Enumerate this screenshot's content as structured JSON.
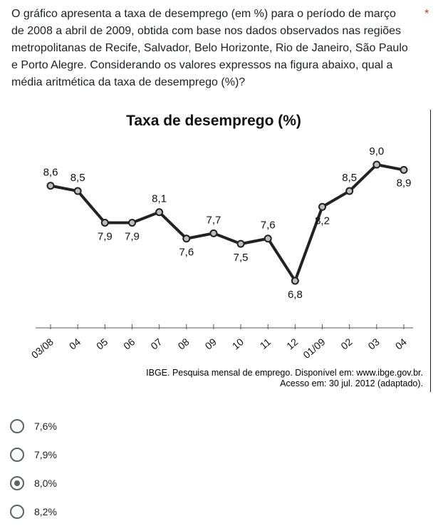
{
  "question": {
    "text": "O gráfico apresenta a taxa de desemprego (em %) para o período de março de 2008 a abril de 2009, obtida com base nos dados observados nas regiões metropolitanas de Recife, Salvador, Belo Horizonte, Rio de Janeiro, São Paulo e Porto Alegre. Considerando os valores expressos na figura abaixo, qual a média aritmética da taxa de desemprego (%)?",
    "required_marker": "*"
  },
  "chart_data": {
    "type": "line",
    "title": "Taxa de desemprego (%)",
    "xlabel": "",
    "ylabel": "",
    "categories": [
      "03/08",
      "04",
      "05",
      "06",
      "07",
      "08",
      "09",
      "10",
      "11",
      "12",
      "01/09",
      "02",
      "03",
      "04"
    ],
    "values": [
      8.6,
      8.5,
      7.9,
      7.9,
      8.1,
      7.6,
      7.7,
      7.5,
      7.6,
      6.8,
      8.2,
      8.5,
      9.0,
      8.9
    ],
    "value_labels": [
      "8,6",
      "8,5",
      "7,9",
      "7,9",
      "8,1",
      "7,6",
      "7,7",
      "7,5",
      "7,6",
      "6,8",
      "8,2",
      "8,5",
      "9,0",
      "8,9"
    ],
    "label_positions": [
      "above",
      "above",
      "below",
      "below",
      "above",
      "below",
      "above",
      "below",
      "above",
      "below",
      "below",
      "above",
      "above",
      "below"
    ],
    "grid": false,
    "legend": "none"
  },
  "source": {
    "line1": "IBGE. Pesquisa mensal de emprego. Disponível em: www.ibge.gov.br.",
    "line2": "Acesso em: 30 jul. 2012 (adaptado)."
  },
  "options": [
    {
      "label": "7,6%",
      "selected": false
    },
    {
      "label": "7,9%",
      "selected": false
    },
    {
      "label": "8,0%",
      "selected": true
    },
    {
      "label": "8,2%",
      "selected": false
    }
  ]
}
